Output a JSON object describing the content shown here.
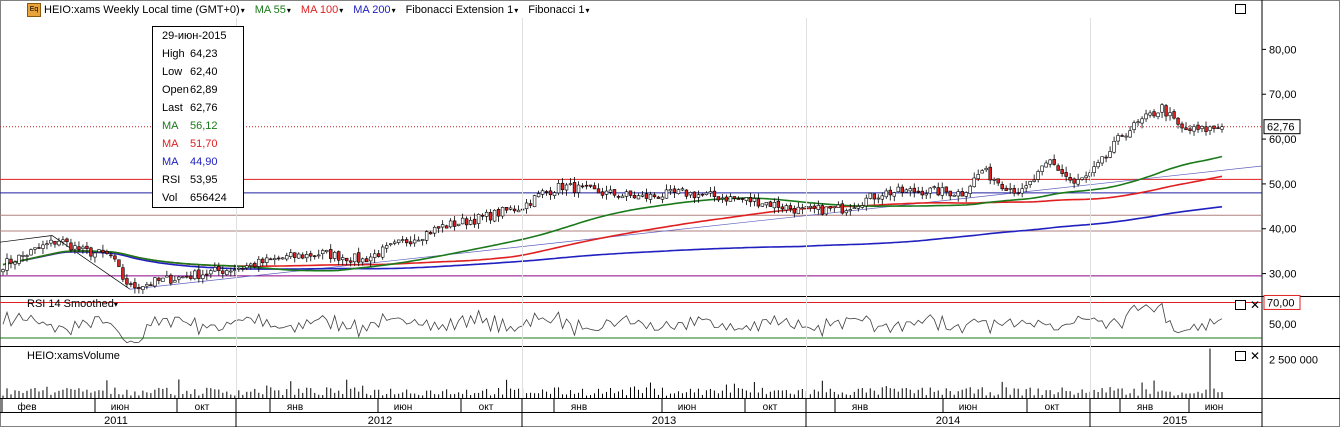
{
  "toolbar": {
    "logo": "Eq",
    "items": [
      {
        "label": "HEIO:xams Weekly Local time (GMT+0)",
        "color": "#000000"
      },
      {
        "label": "MA 55",
        "color": "#1a7a1a"
      },
      {
        "label": "MA 100",
        "color": "#e02020"
      },
      {
        "label": "MA 200",
        "color": "#2020c0"
      },
      {
        "label": "Fibonacci Extension 1",
        "color": "#000000"
      },
      {
        "label": "Fibonacci 1",
        "color": "#000000"
      }
    ]
  },
  "tooltip": {
    "date": "29-июн-2015",
    "rows": [
      {
        "k": "High",
        "v": "64,23",
        "color": "#000000"
      },
      {
        "k": "Low",
        "v": "62,40",
        "color": "#000000"
      },
      {
        "k": "Open",
        "v": "62,89",
        "color": "#000000"
      },
      {
        "k": "Last",
        "v": "62,76",
        "color": "#000000"
      },
      {
        "k": "MA",
        "v": "56,12",
        "color": "#1a7a1a"
      },
      {
        "k": "MA",
        "v": "51,70",
        "color": "#e02020"
      },
      {
        "k": "MA",
        "v": "44,90",
        "color": "#2020c0"
      },
      {
        "k": "RSI",
        "v": "53,95",
        "color": "#000000"
      },
      {
        "k": "Vol",
        "v": "656424",
        "color": "#000000"
      }
    ]
  },
  "panes": {
    "rsi_title": "RSI 14 Smoothed",
    "volume_title": "HEIO:xamsVolume"
  },
  "chart_data": {
    "type": "line",
    "price_axis": {
      "ylim": [
        25,
        87
      ],
      "ticks": [
        "30,00",
        "40,00",
        "50,00",
        "60,00",
        "70,00",
        "80,00"
      ],
      "tick_values": [
        30,
        40,
        50,
        60,
        70,
        80
      ]
    },
    "last_price_label": "62,76",
    "last_price": 62.76,
    "rsi_axis": {
      "ylim": [
        30,
        75
      ],
      "ticks": [
        "50,00"
      ],
      "tick_values": [
        50
      ],
      "highlight_label": "70,00",
      "highlight_value": 70
    },
    "volume_axis": {
      "ticks": [
        "2 500 000"
      ],
      "tick_values": [
        2500000
      ],
      "vmax": 3300000
    },
    "month_labels": [
      "фев",
      "июн",
      "окт",
      "янв",
      "июн",
      "окт",
      "янв",
      "июн",
      "окт",
      "янв",
      "июн",
      "окт",
      "янв",
      "июн"
    ],
    "year_labels": [
      "2011",
      "2012",
      "2013",
      "2014",
      "2015"
    ],
    "horizontal_levels": [
      {
        "value": 29.5,
        "color": "#8b008b"
      },
      {
        "value": 39.5,
        "color": "#b08080"
      },
      {
        "value": 43.0,
        "color": "#b08080"
      },
      {
        "value": 48.0,
        "color": "#2020a0"
      },
      {
        "value": 51.0,
        "color": "#e02020"
      }
    ],
    "close_anchors": [
      [
        0,
        32
      ],
      [
        10,
        36
      ],
      [
        14,
        37.5
      ],
      [
        20,
        35
      ],
      [
        27,
        34
      ],
      [
        30,
        29
      ],
      [
        32,
        27
      ],
      [
        40,
        28.5
      ],
      [
        50,
        30
      ],
      [
        60,
        31.5
      ],
      [
        70,
        33.5
      ],
      [
        80,
        34.5
      ],
      [
        90,
        33
      ],
      [
        100,
        37
      ],
      [
        110,
        40.5
      ],
      [
        120,
        42.5
      ],
      [
        130,
        45
      ],
      [
        135,
        48
      ],
      [
        140,
        49.5
      ],
      [
        150,
        48
      ],
      [
        160,
        47
      ],
      [
        170,
        48
      ],
      [
        180,
        47
      ],
      [
        190,
        46
      ],
      [
        200,
        44
      ],
      [
        210,
        44.5
      ],
      [
        220,
        48
      ],
      [
        230,
        48.5
      ],
      [
        240,
        48
      ],
      [
        245,
        53
      ],
      [
        250,
        50
      ],
      [
        255,
        48
      ],
      [
        262,
        55
      ],
      [
        268,
        50
      ],
      [
        272,
        52
      ],
      [
        276,
        56
      ],
      [
        280,
        61
      ],
      [
        285,
        64
      ],
      [
        290,
        67
      ],
      [
        295,
        62
      ],
      [
        300,
        62
      ],
      [
        305,
        62.8
      ]
    ],
    "ma": [
      {
        "label": "MA 55",
        "value": 56.12,
        "color": "#1a7a1a"
      },
      {
        "label": "MA 100",
        "value": 51.7,
        "color": "#e02020"
      },
      {
        "label": "MA 200",
        "value": 44.9,
        "color": "#2020c0"
      }
    ],
    "colors": {
      "up": "#ffffff",
      "down": "#e02020",
      "wick": "#000000",
      "rsi": "#404040",
      "volume": "#000000"
    }
  }
}
